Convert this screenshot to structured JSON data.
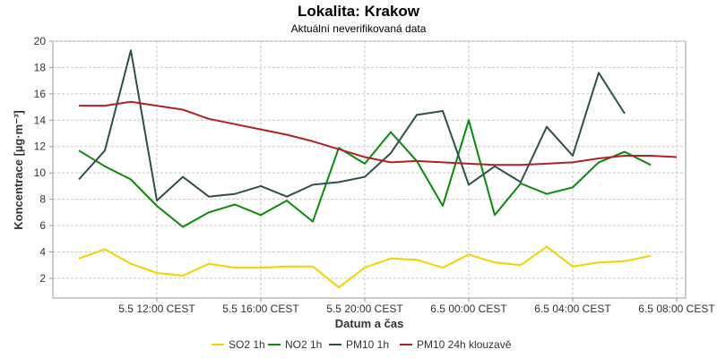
{
  "chart_data": {
    "type": "line",
    "title": "Lokalita: Krakow",
    "subtitle": "Aktuální neverifikovaná data",
    "xlabel": "Datum a čas",
    "ylabel": "Koncentrace [µg·m⁻³]",
    "x": [
      "5.5 09:00",
      "5.5 10:00",
      "5.5 11:00",
      "5.5 12:00",
      "5.5 13:00",
      "5.5 14:00",
      "5.5 15:00",
      "5.5 16:00",
      "5.5 17:00",
      "5.5 18:00",
      "5.5 19:00",
      "5.5 20:00",
      "5.5 21:00",
      "5.5 22:00",
      "5.5 23:00",
      "6.5 00:00",
      "6.5 01:00",
      "6.5 02:00",
      "6.5 03:00",
      "6.5 04:00",
      "6.5 05:00",
      "6.5 06:00",
      "6.5 07:00",
      "6.5 08:00"
    ],
    "xticks": [
      "5.5 12:00 CEST",
      "5.5 16:00 CEST",
      "5.5 20:00 CEST",
      "6.5 00:00 CEST",
      "6.5 04:00 CEST",
      "6.5 08:00 CEST"
    ],
    "ylim": [
      0.5,
      20
    ],
    "yticks": [
      2,
      4,
      6,
      8,
      10,
      12,
      14,
      16,
      18,
      20
    ],
    "grid": true,
    "legend": "bottom",
    "series": [
      {
        "name": "SO2 1h",
        "color": "#f2d300",
        "values": [
          3.5,
          4.2,
          3.1,
          2.4,
          2.2,
          3.1,
          2.8,
          2.8,
          2.9,
          2.9,
          1.3,
          2.8,
          3.5,
          3.4,
          2.8,
          3.8,
          3.2,
          3.0,
          4.4,
          2.9,
          3.2,
          3.3,
          3.7,
          null
        ]
      },
      {
        "name": "NO2 1h",
        "color": "#0a8a0a",
        "values": [
          11.7,
          10.5,
          9.5,
          7.5,
          5.9,
          7.0,
          7.6,
          6.8,
          7.9,
          6.3,
          11.9,
          10.7,
          13.1,
          10.9,
          7.5,
          14.0,
          6.8,
          9.2,
          8.4,
          8.9,
          10.8,
          11.6,
          10.6,
          null
        ]
      },
      {
        "name": "PM10 1h",
        "color": "#2f4f4f",
        "values": [
          9.5,
          11.7,
          19.3,
          7.9,
          9.7,
          8.2,
          8.4,
          9.0,
          8.2,
          9.1,
          9.3,
          9.7,
          11.5,
          14.4,
          14.7,
          9.1,
          10.5,
          9.3,
          13.5,
          11.3,
          17.6,
          14.5,
          null,
          null
        ]
      },
      {
        "name": "PM10 24h klouzavě",
        "color": "#b22222",
        "values": [
          15.1,
          15.1,
          15.4,
          15.1,
          14.8,
          14.1,
          13.7,
          13.3,
          12.9,
          12.4,
          11.8,
          11.2,
          10.8,
          10.9,
          10.8,
          10.7,
          10.6,
          10.6,
          10.7,
          10.8,
          11.1,
          11.3,
          11.3,
          11.2
        ]
      }
    ]
  }
}
